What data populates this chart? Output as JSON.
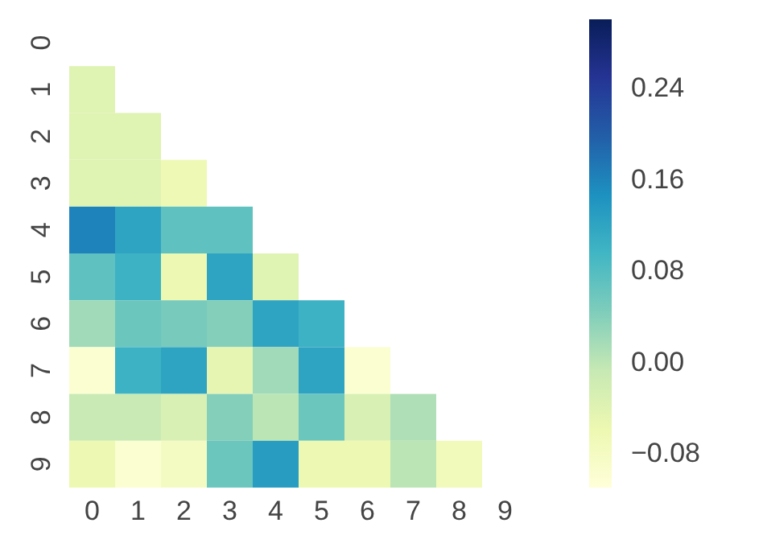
{
  "chart_data": {
    "type": "heatmap",
    "categories": [
      "0",
      "1",
      "2",
      "3",
      "4",
      "5",
      "6",
      "7",
      "8",
      "9"
    ],
    "y_categories": [
      "0",
      "1",
      "2",
      "3",
      "4",
      "5",
      "6",
      "7",
      "8",
      "9"
    ],
    "cells": [
      [
        null,
        null,
        null,
        null,
        null,
        null,
        null,
        null,
        null,
        null
      ],
      [
        -0.04,
        null,
        null,
        null,
        null,
        null,
        null,
        null,
        null,
        null
      ],
      [
        -0.04,
        -0.04,
        null,
        null,
        null,
        null,
        null,
        null,
        null,
        null
      ],
      [
        -0.04,
        -0.04,
        -0.065,
        null,
        null,
        null,
        null,
        null,
        null,
        null
      ],
      [
        0.16,
        0.12,
        0.07,
        0.07,
        null,
        null,
        null,
        null,
        null,
        null
      ],
      [
        0.07,
        0.1,
        -0.06,
        0.12,
        -0.04,
        null,
        null,
        null,
        null,
        null
      ],
      [
        0.02,
        0.06,
        0.05,
        0.04,
        0.12,
        0.1,
        null,
        null,
        null,
        null
      ],
      [
        -0.1,
        0.1,
        0.12,
        -0.05,
        0.02,
        0.12,
        -0.1,
        null,
        null,
        null
      ],
      [
        -0.01,
        -0.01,
        -0.03,
        0.04,
        0.0,
        0.06,
        -0.03,
        0.01,
        null,
        null
      ],
      [
        -0.06,
        -0.1,
        -0.08,
        0.06,
        0.13,
        -0.06,
        -0.06,
        0.0,
        -0.07,
        null
      ]
    ],
    "clim": [
      -0.11,
      0.3
    ],
    "cticks": [
      {
        "value": -0.08,
        "label": "−0.08"
      },
      {
        "value": 0,
        "label": "0.00"
      },
      0.08,
      0.16,
      0.24
    ]
  }
}
